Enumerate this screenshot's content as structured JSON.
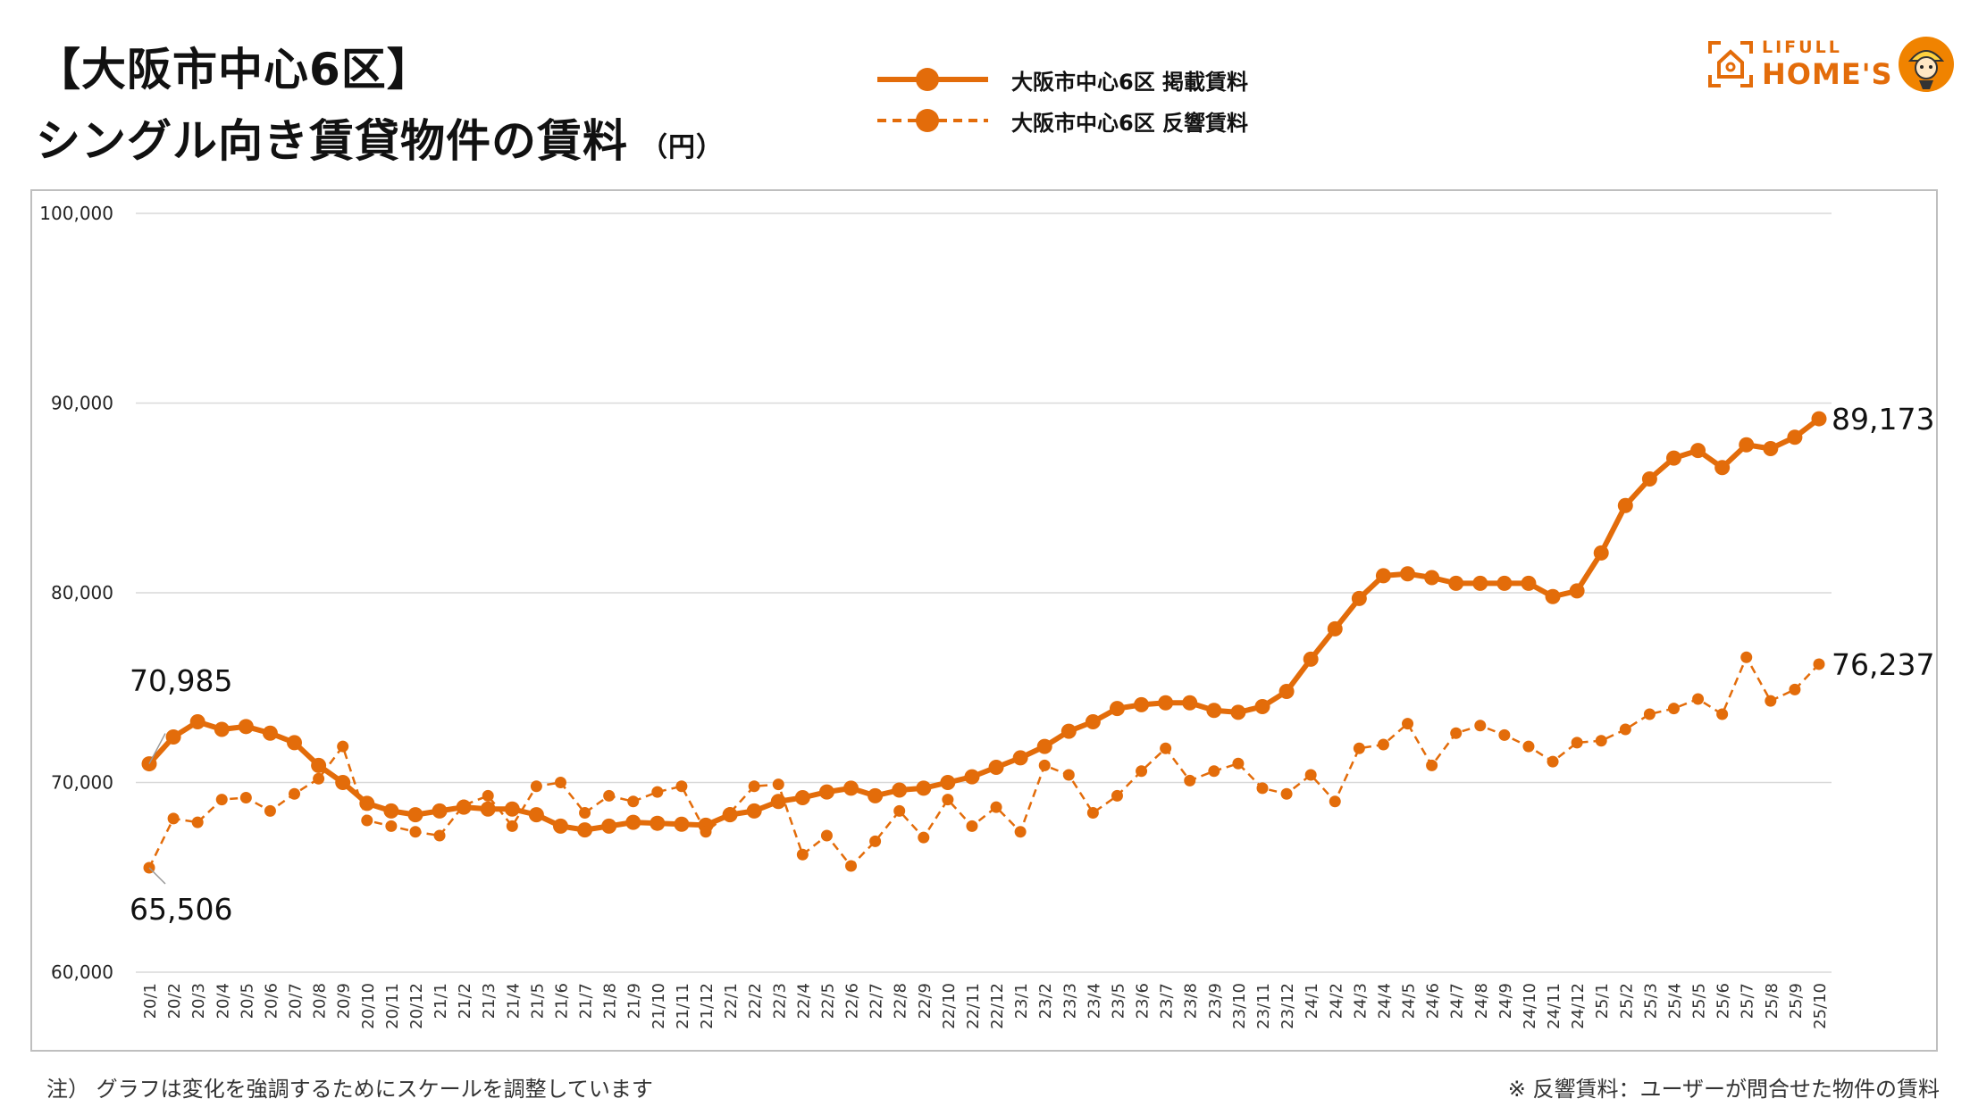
{
  "header": {
    "title_line1": "【大阪市中心6区】",
    "title_line2": "シングル向き賃貸物件の賃料",
    "unit": "（円）"
  },
  "legend": {
    "series1": "大阪市中心6区 掲載賃料",
    "series2": "大阪市中心6区 反響賃料"
  },
  "logo": {
    "line1": "LIFULL",
    "line2": "HOME'S"
  },
  "footnotes": {
    "left": "注） グラフは変化を強調するためにスケールを調整しています",
    "right": "※ 反響賃料：ユーザーが問合せた物件の賃料"
  },
  "colors": {
    "accent": "#e36c0a",
    "grid": "#d9d9d9"
  },
  "chart_data": {
    "type": "line",
    "title": "シングル向き賃貸物件の賃料",
    "ylabel": "（円）",
    "ylim": [
      60000,
      100000
    ],
    "yticks": [
      60000,
      70000,
      80000,
      90000,
      100000
    ],
    "ytick_labels": [
      "60,000",
      "70,000",
      "80,000",
      "90,000",
      "100,000"
    ],
    "grid": true,
    "categories": [
      "20/1",
      "20/2",
      "20/3",
      "20/4",
      "20/5",
      "20/6",
      "20/7",
      "20/8",
      "20/9",
      "20/10",
      "20/11",
      "20/12",
      "21/1",
      "21/2",
      "21/3",
      "21/4",
      "21/5",
      "21/6",
      "21/7",
      "21/8",
      "21/9",
      "21/10",
      "21/11",
      "21/12",
      "22/1",
      "22/2",
      "22/3",
      "22/4",
      "22/5",
      "22/6",
      "22/7",
      "22/8",
      "22/9",
      "22/10",
      "22/11",
      "22/12",
      "23/1",
      "23/2",
      "23/3",
      "23/4",
      "23/5",
      "23/6",
      "23/7",
      "23/8",
      "23/9",
      "23/10",
      "23/11",
      "23/12",
      "24/1",
      "24/2",
      "24/3",
      "24/4",
      "24/5",
      "24/6",
      "24/7",
      "24/8",
      "24/9",
      "24/10",
      "24/11",
      "24/12",
      "25/1",
      "25/2",
      "25/3",
      "25/4",
      "25/5",
      "25/6",
      "25/7",
      "25/8",
      "25/9",
      "25/10"
    ],
    "series": [
      {
        "name": "大阪市中心6区 掲載賃料",
        "style": "solid",
        "values": [
          70985,
          72400,
          73200,
          72800,
          72950,
          72600,
          72100,
          70900,
          70000,
          68900,
          68500,
          68300,
          68500,
          68700,
          68600,
          68600,
          68300,
          67700,
          67500,
          67700,
          67900,
          67850,
          67800,
          67750,
          68300,
          68500,
          69000,
          69200,
          69500,
          69700,
          69300,
          69600,
          69700,
          70000,
          70300,
          70800,
          71300,
          71900,
          72700,
          73200,
          73900,
          74100,
          74200,
          74200,
          73800,
          73700,
          74000,
          74800,
          76500,
          78100,
          79700,
          80900,
          81000,
          80800,
          80500,
          80500,
          80500,
          80500,
          79800,
          80100,
          82100,
          84600,
          86000,
          87100,
          87500,
          86600,
          87800,
          87600,
          88200,
          89173
        ]
      },
      {
        "name": "大阪市中心6区 反響賃料",
        "style": "dashed",
        "values": [
          65506,
          68100,
          67900,
          69100,
          69200,
          68500,
          69400,
          70200,
          71900,
          68000,
          67700,
          67400,
          67200,
          68800,
          69300,
          67700,
          69800,
          70000,
          68400,
          69300,
          69000,
          69500,
          69800,
          67400,
          68400,
          69800,
          69900,
          66200,
          67200,
          65600,
          66900,
          68500,
          67100,
          69100,
          67700,
          68700,
          67400,
          70900,
          70400,
          68400,
          69300,
          70600,
          71800,
          70100,
          70600,
          71000,
          69700,
          69400,
          70400,
          69000,
          71800,
          72000,
          73100,
          70900,
          72600,
          73000,
          72500,
          71900,
          71100,
          72100,
          72200,
          72800,
          73600,
          73900,
          74400,
          73600,
          76600,
          74300,
          74900,
          76237
        ]
      }
    ],
    "annotations": {
      "series1_first": "70,985",
      "series1_last": "89,173",
      "series2_first": "65,506",
      "series2_last": "76,237"
    }
  }
}
